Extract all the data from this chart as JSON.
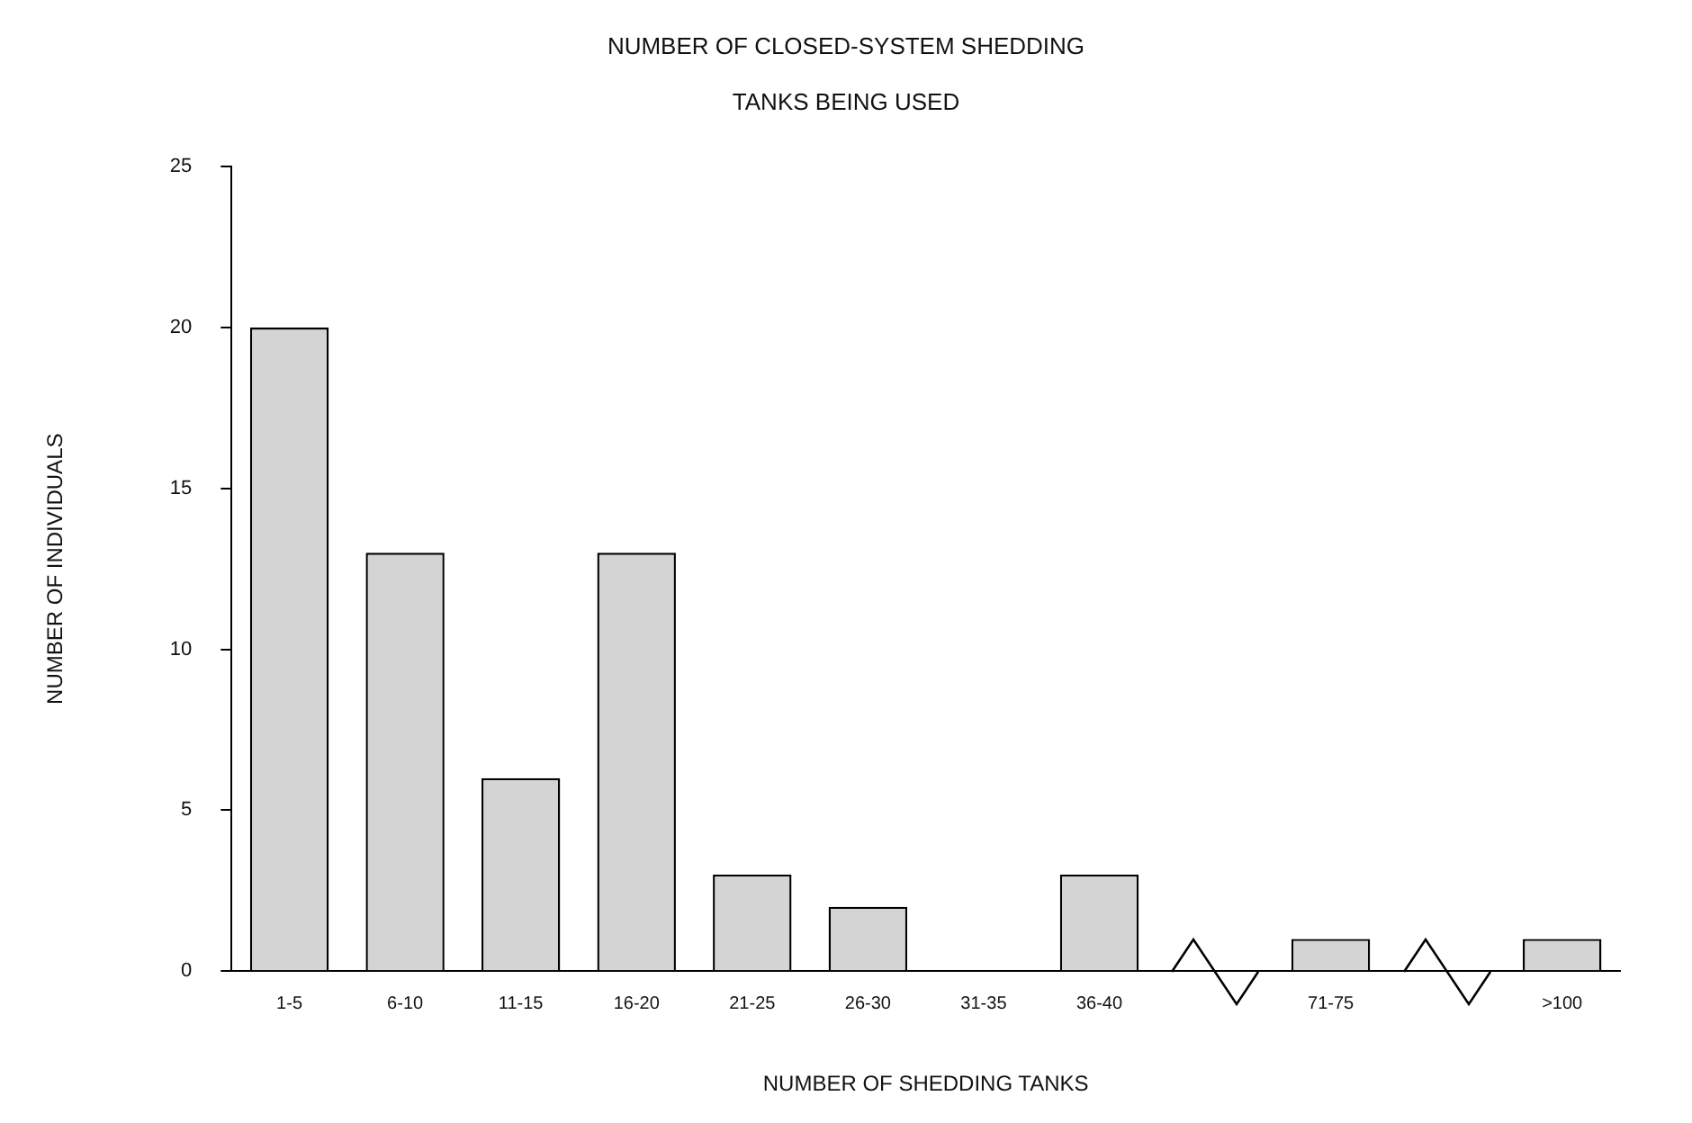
{
  "chart_data": {
    "type": "bar",
    "title": "NUMBER OF CLOSED-SYSTEM SHEDDING TANKS BEING USED",
    "xlabel": "NUMBER OF SHEDDING TANKS",
    "ylabel": "NUMBER OF INDIVIDUALS",
    "categories": [
      "1-5",
      "6-10",
      "11-15",
      "16-20",
      "21-25",
      "26-30",
      "31-35",
      "36-40",
      null,
      "71-75",
      null,
      ">100"
    ],
    "values": [
      20,
      13,
      6,
      13,
      3,
      2,
      0,
      3,
      null,
      1,
      null,
      1
    ],
    "color": "#d4d4d4",
    "ylim": [
      0,
      25
    ],
    "yticks": [
      0,
      5,
      10,
      15,
      20,
      25
    ],
    "grid": false,
    "legend": false
  }
}
